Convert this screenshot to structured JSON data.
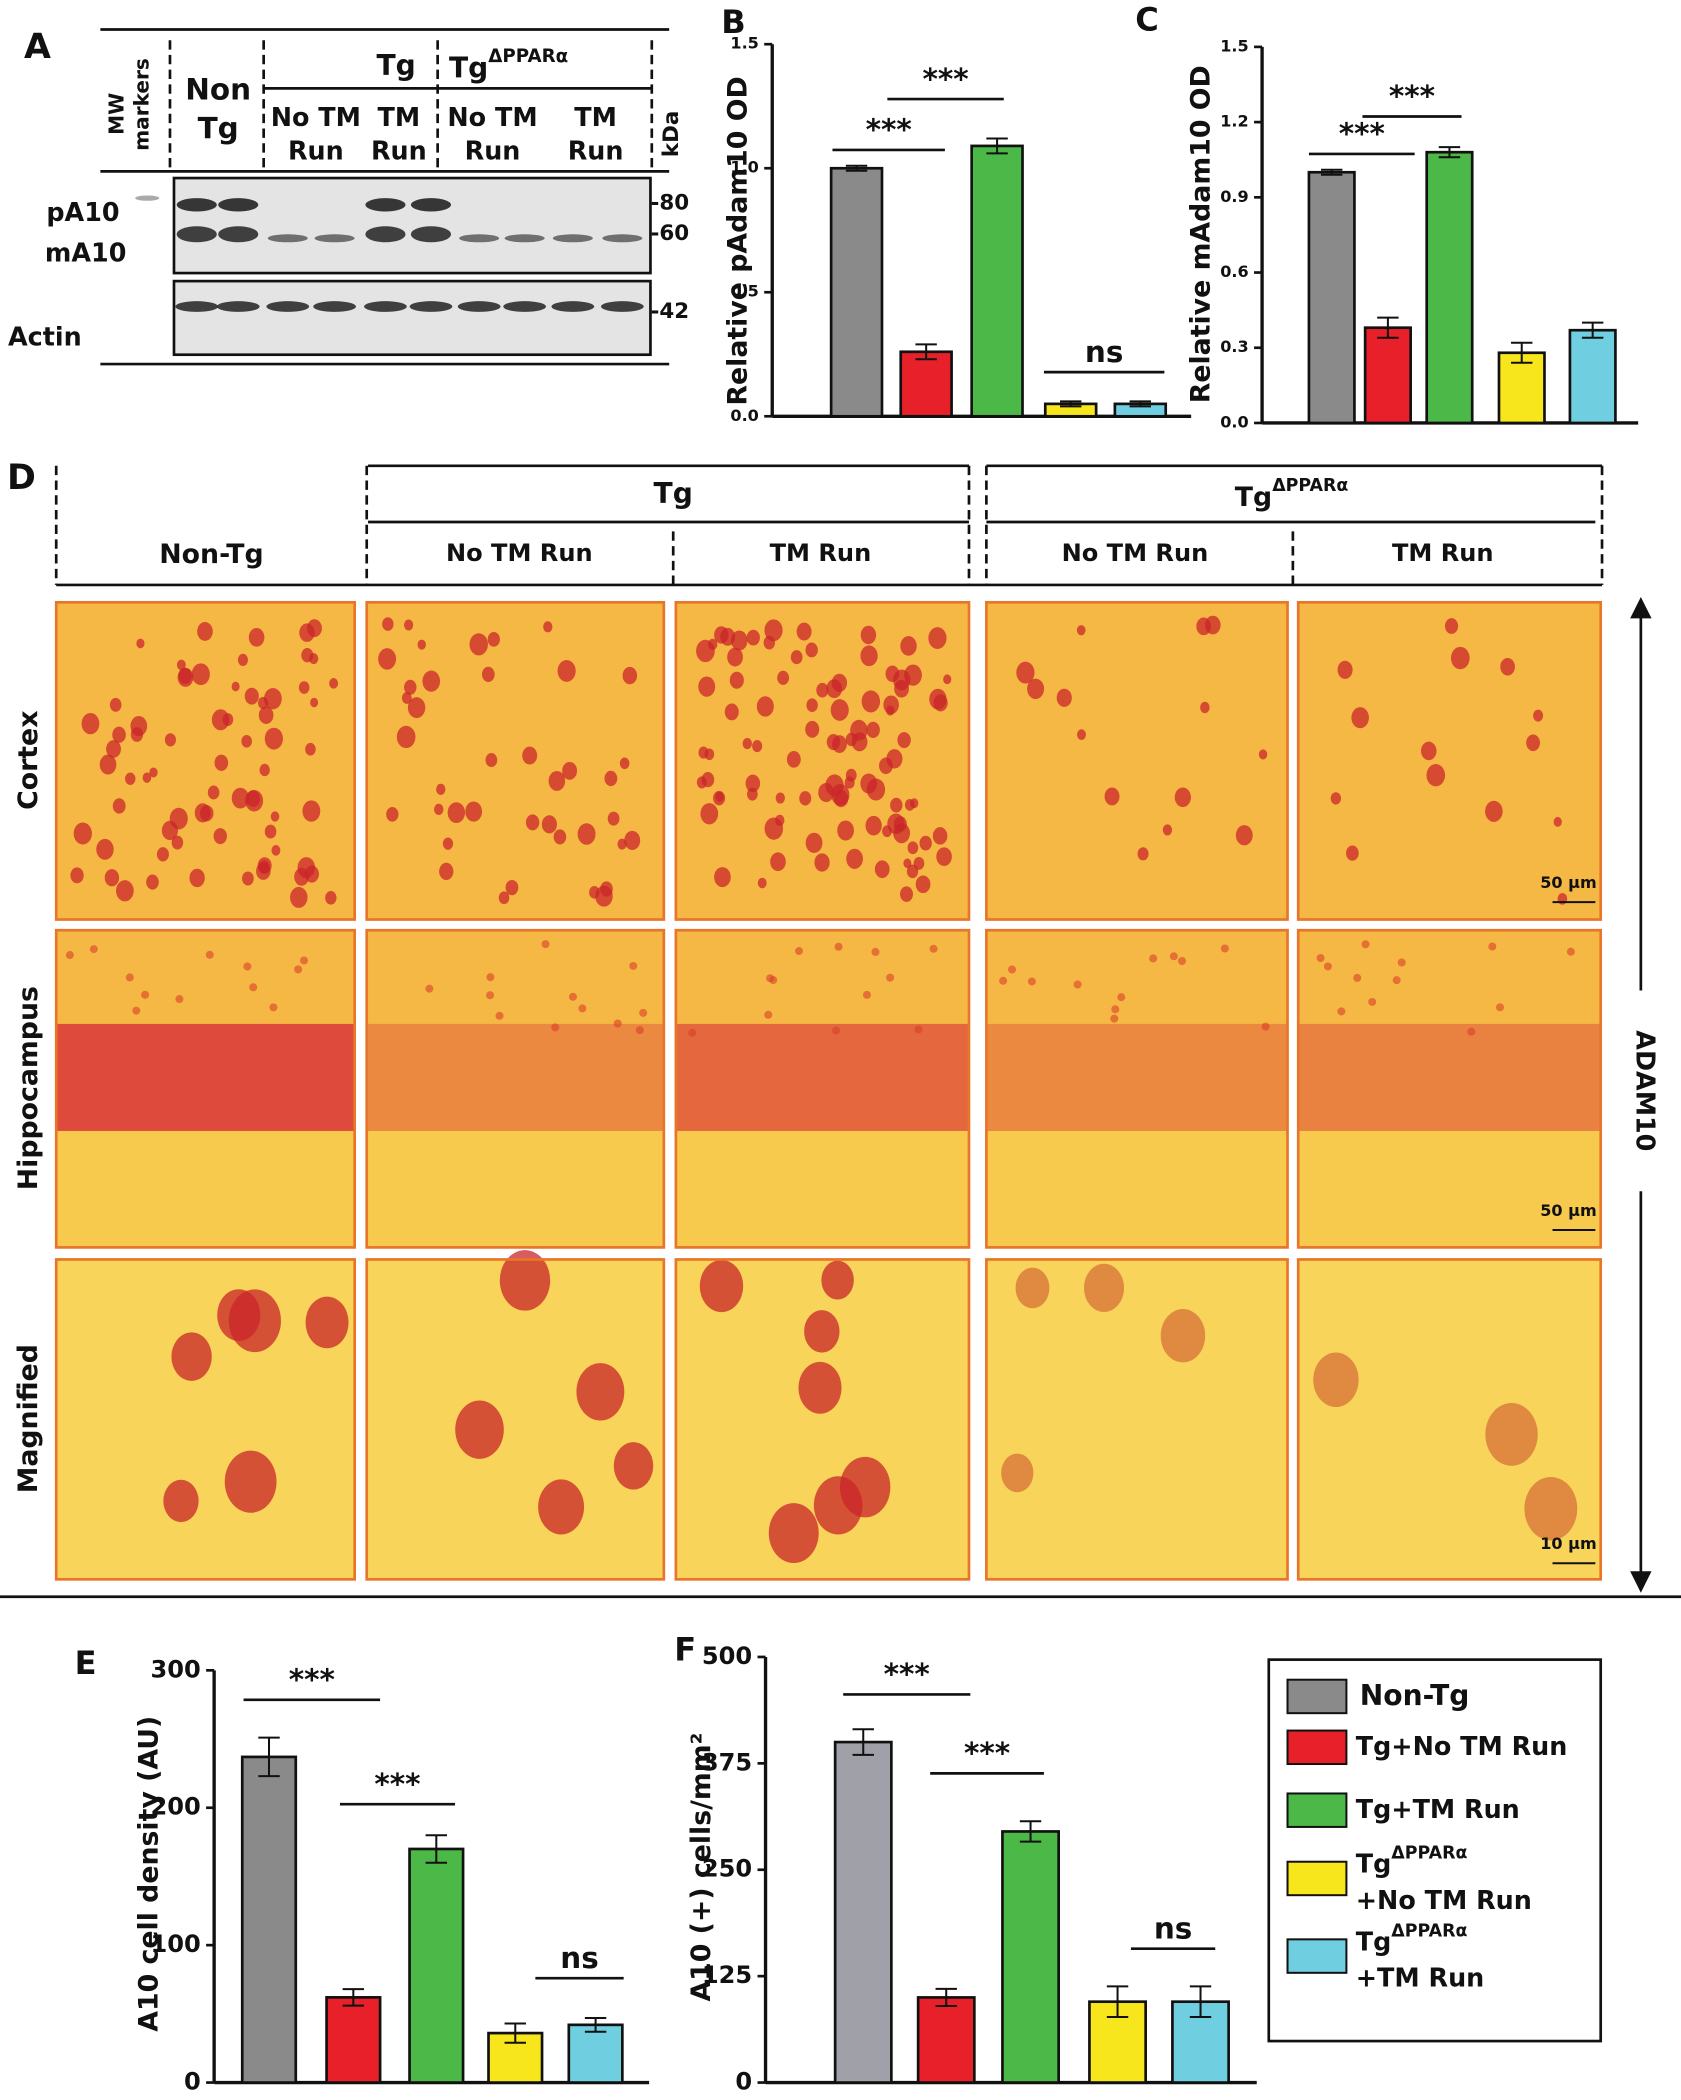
{
  "panel_a": {
    "label": "A",
    "mw": [
      "MW",
      "markers"
    ],
    "non_tg": [
      "Non",
      "Tg"
    ],
    "tg": "Tg",
    "tg_ppar": {
      "base": "Tg",
      "sup": "ΔPPARα"
    },
    "lanes": [
      [
        "No TM",
        "Run"
      ],
      [
        "TM",
        "Run"
      ],
      [
        "No TM",
        "Run"
      ],
      [
        "TM",
        "Run"
      ]
    ],
    "kda": "kDa",
    "rows": [
      "pA10",
      "mA10",
      "Actin"
    ],
    "markers": [
      "-80",
      "-60",
      "-42"
    ]
  },
  "panel_d": {
    "label": "D",
    "non_tg": "Non-Tg",
    "tg": "Tg",
    "tg_ppar": {
      "base": "Tg",
      "sup": "ΔPPARα"
    },
    "columns": [
      "No TM Run",
      "TM Run",
      "No TM Run",
      "TM Run"
    ],
    "rows": [
      "Cortex",
      "Hippocampus",
      "Magnified"
    ],
    "scale_bars": [
      "50 µm",
      "50 µm",
      "10 µm"
    ],
    "stain": "ADAM10"
  },
  "legend": [
    {
      "label": "Non-Tg",
      "color": "#8a8a8a"
    },
    {
      "label": "Tg+No TM Run",
      "color": "#e8202a"
    },
    {
      "label": "Tg+TM Run",
      "color": "#4cb848"
    },
    {
      "label": "Tg",
      "sup": "ΔPPARα",
      "label2": "+No TM Run",
      "color": "#f7e61c"
    },
    {
      "label": "Tg",
      "sup": "ΔPPARα",
      "label2": "+TM Run",
      "color": "#6fcfe0"
    }
  ],
  "chart_data": [
    {
      "type": "bar",
      "panel": "B",
      "ylabel": "Relative pAdam10 OD",
      "ylim": [
        0,
        1.5
      ],
      "yticks": [
        {
          "value": 0,
          "label": "0.0"
        },
        0.5,
        {
          "value": 1,
          "label": "1.0"
        },
        1.5
      ],
      "values": [
        1.0,
        0.26,
        1.09,
        0.05,
        0.05
      ],
      "errors": [
        0.01,
        0.03,
        0.03,
        0.01,
        0.01
      ],
      "colors": [
        "#8a8a8a",
        "#e8202a",
        "#4cb848",
        "#f7e61c",
        "#6fcfe0"
      ],
      "annotations": [
        "***",
        "***",
        "ns"
      ]
    },
    {
      "type": "bar",
      "panel": "C",
      "ylabel": "Relative mAdam10 OD",
      "ylim": [
        0,
        1.5
      ],
      "yticks": [
        {
          "value": 0,
          "label": "0.0"
        },
        0.3,
        0.6,
        0.9,
        1.2,
        1.5
      ],
      "values": [
        1.0,
        0.38,
        1.08,
        0.28,
        0.37
      ],
      "errors": [
        0.01,
        0.04,
        0.02,
        0.04,
        0.03
      ],
      "colors": [
        "#8a8a8a",
        "#e8202a",
        "#4cb848",
        "#f7e61c",
        "#6fcfe0"
      ],
      "annotations": [
        "***",
        "***"
      ]
    },
    {
      "type": "bar",
      "panel": "E",
      "ylabel": "A10 cell density (AU)",
      "ylim": [
        0,
        300
      ],
      "yticks": [
        0,
        100,
        200,
        300
      ],
      "values": [
        237,
        62,
        170,
        36,
        42
      ],
      "errors": [
        14,
        6,
        10,
        7,
        5
      ],
      "colors": [
        "#8a8a8a",
        "#e8202a",
        "#4cb848",
        "#f7e61c",
        "#6fcfe0"
      ],
      "annotations": [
        "***",
        "***",
        "ns"
      ]
    },
    {
      "type": "bar",
      "panel": "F",
      "ylabel": "A10 (+) cells/mm²",
      "ylim": [
        0,
        500
      ],
      "yticks": [
        0,
        125,
        250,
        375,
        500
      ],
      "values": [
        400,
        100,
        295,
        95,
        95
      ],
      "errors": [
        15,
        10,
        12,
        18,
        18
      ],
      "colors": [
        "#a0a0a8",
        "#e8202a",
        "#4cb848",
        "#f7e61c",
        "#6fcfe0"
      ],
      "annotations": [
        "***",
        "***",
        "ns"
      ]
    }
  ]
}
